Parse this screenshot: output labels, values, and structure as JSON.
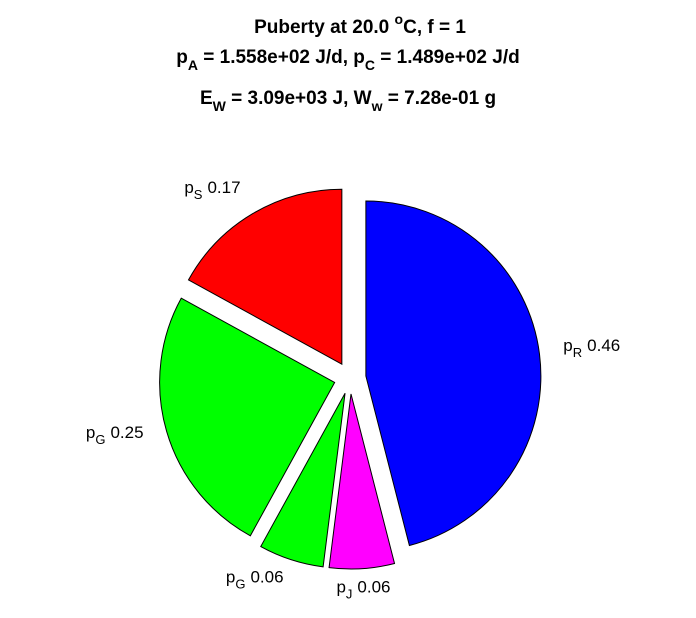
{
  "chart_data": {
    "type": "pie",
    "title": [
      [
        "Puberty at 20.0 ",
        "o",
        "C, f = 1"
      ],
      [
        "p",
        "A",
        " = 1.558e+02 J/d,  p",
        "C",
        " = 1.489e+02 J/d"
      ],
      [
        "E",
        "W",
        " = 3.09e+03 J, W",
        "w",
        " = 7.28e-01 g"
      ]
    ],
    "categories": [
      [
        "p",
        "R"
      ],
      [
        "p",
        "J"
      ],
      [
        "p",
        "G"
      ],
      [
        "p",
        "G"
      ],
      [
        "p",
        "S"
      ]
    ],
    "values": [
      0.46,
      0.06,
      0.06,
      0.25,
      0.17
    ],
    "colors": [
      "#0000ff",
      "#ff00ff",
      "#00ff00",
      "#00ff00",
      "#ff0000"
    ],
    "exploded": true
  }
}
